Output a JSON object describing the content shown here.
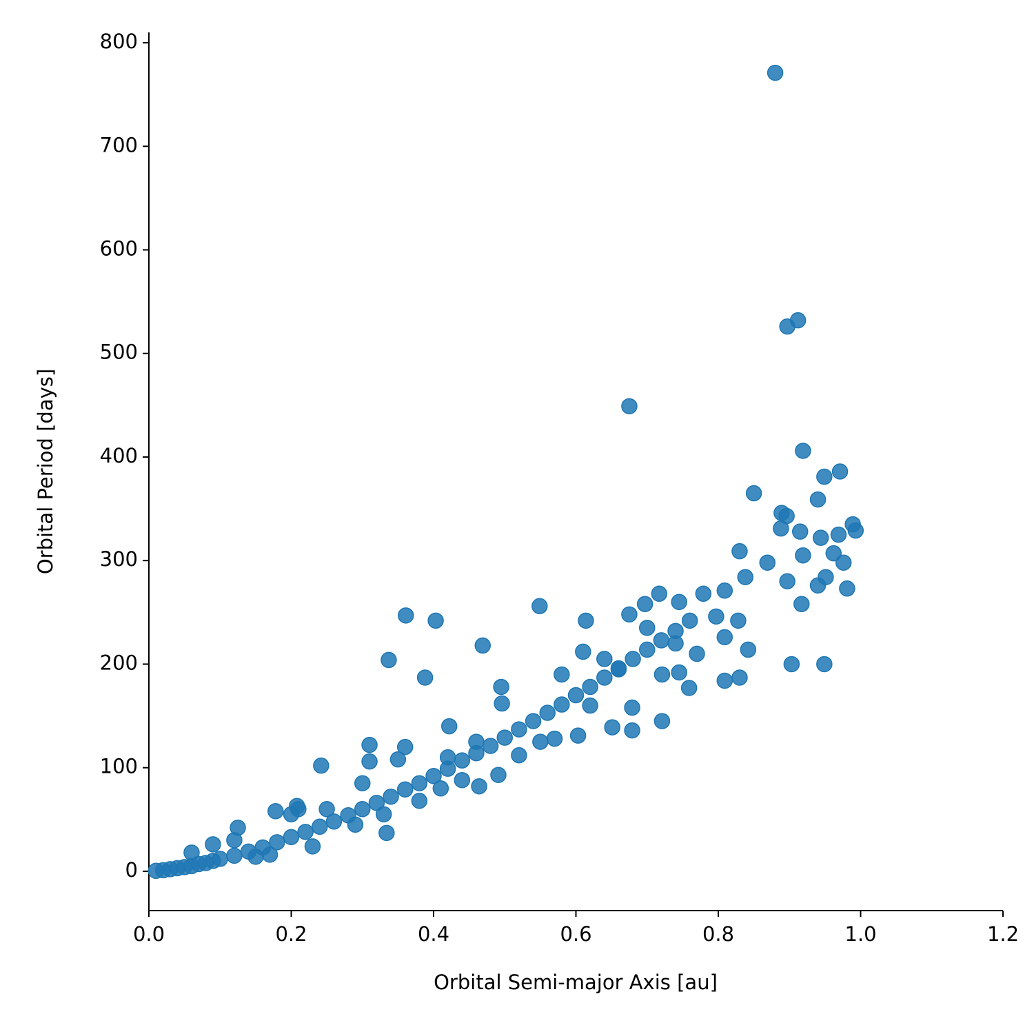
{
  "chart_data": {
    "type": "scatter",
    "xlabel": "Orbital Semi-major Axis [au]",
    "ylabel": "Orbital Period [days]",
    "color": "#1f77b4",
    "xlim": [
      0,
      1.2
    ],
    "ylim": [
      -38,
      810
    ],
    "xticks": [
      {
        "value": 0,
        "label": "0.0"
      },
      0.2,
      0.4,
      0.6,
      0.8,
      {
        "value": 1,
        "label": "1.0"
      },
      1.2
    ],
    "yticks": [
      0,
      100,
      200,
      300,
      400,
      500,
      600,
      700,
      800
    ],
    "x": [
      0.88,
      0.912,
      0.897,
      0.675,
      0.919,
      0.971,
      0.949,
      0.85,
      0.94,
      0.889,
      0.896,
      0.989,
      0.993,
      0.888,
      0.915,
      0.969,
      0.944,
      0.83,
      0.919,
      0.962,
      0.976,
      0.869,
      0.951,
      0.897,
      0.94,
      0.981,
      0.917,
      0.549,
      0.361,
      0.403,
      0.469,
      0.337,
      0.388,
      0.242,
      0.334,
      0.903,
      0.949,
      0.842,
      0.83,
      0.809,
      0.721,
      0.679,
      0.679,
      0.651,
      0.603,
      0.759,
      0.745,
      0.721,
      0.614,
      0.675,
      0.697,
      0.717,
      0.745,
      0.779,
      0.809,
      0.797,
      0.828,
      0.809,
      0.838,
      0.495,
      0.496,
      0.464,
      0.491,
      0.422,
      0.31,
      0.31,
      0.178,
      0.125,
      0.208,
      0.01,
      0.02,
      0.03,
      0.04,
      0.05,
      0.06,
      0.07,
      0.08,
      0.09,
      0.1,
      0.12,
      0.14,
      0.16,
      0.18,
      0.2,
      0.22,
      0.24,
      0.26,
      0.28,
      0.3,
      0.32,
      0.34,
      0.36,
      0.38,
      0.4,
      0.42,
      0.44,
      0.46,
      0.48,
      0.5,
      0.52,
      0.54,
      0.56,
      0.58,
      0.6,
      0.62,
      0.64,
      0.66,
      0.68,
      0.7,
      0.72,
      0.74,
      0.76,
      0.06,
      0.09,
      0.15,
      0.2,
      0.21,
      0.23,
      0.25,
      0.29,
      0.33,
      0.36,
      0.38,
      0.42,
      0.44,
      0.46,
      0.52,
      0.55,
      0.57,
      0.58,
      0.61,
      0.62,
      0.64,
      0.66,
      0.7,
      0.74,
      0.77,
      0.3,
      0.17,
      0.12,
      0.35,
      0.41
    ],
    "y": [
      771,
      532,
      526,
      449,
      406,
      386,
      381,
      365,
      359,
      346,
      343,
      335,
      329,
      331,
      328,
      325,
      322,
      309,
      305,
      307,
      298,
      298,
      284,
      280,
      276,
      273,
      258,
      256,
      247,
      242,
      218,
      204,
      187,
      102,
      37,
      200,
      200,
      214,
      187,
      184,
      145,
      158,
      136,
      139,
      131,
      177,
      192,
      190,
      242,
      248,
      258,
      268,
      260,
      268,
      271,
      246,
      242,
      226,
      284,
      178,
      162,
      82,
      93,
      140,
      122,
      106,
      58,
      42,
      63,
      0.4,
      1,
      2,
      3,
      4,
      5,
      7,
      8,
      10,
      12,
      15,
      19,
      23,
      28,
      33,
      38,
      43,
      48,
      54,
      60,
      66,
      72,
      79,
      85,
      92,
      99,
      107,
      114,
      121,
      129,
      137,
      145,
      153,
      161,
      170,
      178,
      187,
      196,
      205,
      214,
      223,
      232,
      242,
      18,
      26,
      14,
      55,
      60,
      24,
      60,
      45,
      55,
      120,
      68,
      110,
      88,
      125,
      112,
      125,
      128,
      190,
      212,
      160,
      205,
      195,
      235,
      220,
      210,
      85,
      16,
      30,
      108,
      80
    ]
  }
}
